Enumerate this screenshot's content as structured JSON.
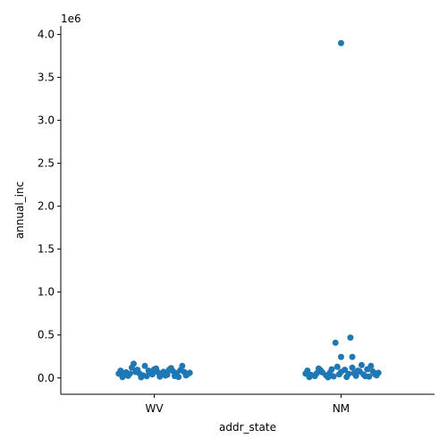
{
  "chart_data": {
    "type": "scatter",
    "xlabel": "addr_state",
    "ylabel": "annual_inc",
    "offset_label": "1e6",
    "categories": [
      "WV",
      "NM"
    ],
    "ylim": [
      -190000,
      4100000
    ],
    "yticks": [
      0,
      500000,
      1000000,
      1500000,
      2000000,
      2500000,
      3000000,
      3500000,
      4000000
    ],
    "ytick_labels": [
      "0.0",
      "0.5",
      "1.0",
      "1.5",
      "2.0",
      "2.5",
      "3.0",
      "3.5",
      "4.0"
    ],
    "grid": false,
    "legend": "none",
    "marker_color": "#1f77b4",
    "series": [
      {
        "category": "WV",
        "points": [
          [
            -0.18,
            85000
          ],
          [
            -0.12,
            120000
          ],
          [
            -0.02,
            60000
          ],
          [
            0.08,
            95000
          ],
          [
            0.16,
            70000
          ],
          [
            -0.16,
            40000
          ],
          [
            -0.06,
            30000
          ],
          [
            0.04,
            50000
          ],
          [
            0.12,
            35000
          ],
          [
            -0.1,
            70000
          ],
          [
            0.0,
            100000
          ],
          [
            0.1,
            80000
          ],
          [
            -0.14,
            25000
          ],
          [
            -0.04,
            20000
          ],
          [
            0.06,
            28000
          ],
          [
            0.18,
            45000
          ],
          [
            -0.08,
            55000
          ],
          [
            0.02,
            65000
          ],
          [
            0.14,
            90000
          ],
          [
            -0.11,
            165000
          ],
          [
            -0.05,
            140000
          ],
          [
            0.09,
            115000
          ],
          [
            0.15,
            140000
          ],
          [
            -0.17,
            10000
          ],
          [
            -0.07,
            8000
          ],
          [
            0.03,
            15000
          ],
          [
            0.13,
            12000
          ],
          [
            0.19,
            60000
          ],
          [
            -0.01,
            42000
          ],
          [
            0.07,
            38000
          ],
          [
            -0.13,
            50000
          ],
          [
            0.11,
            22000
          ],
          [
            -0.03,
            85000
          ],
          [
            0.05,
            72000
          ],
          [
            0.17,
            30000
          ],
          [
            -0.09,
            95000
          ],
          [
            0.01,
            110000
          ],
          [
            -0.15,
            65000
          ],
          [
            0.12,
            55000
          ],
          [
            -0.19,
            50000
          ]
        ]
      },
      {
        "category": "NM",
        "points": [
          [
            0.0,
            3900000
          ],
          [
            0.05,
            470000
          ],
          [
            -0.03,
            410000
          ],
          [
            0.0,
            245000
          ],
          [
            0.06,
            245000
          ],
          [
            -0.18,
            85000
          ],
          [
            -0.12,
            110000
          ],
          [
            -0.06,
            60000
          ],
          [
            0.02,
            95000
          ],
          [
            0.1,
            75000
          ],
          [
            0.16,
            140000
          ],
          [
            0.2,
            60000
          ],
          [
            -0.16,
            35000
          ],
          [
            -0.08,
            30000
          ],
          [
            0.04,
            48000
          ],
          [
            0.12,
            40000
          ],
          [
            -0.14,
            22000
          ],
          [
            -0.04,
            18000
          ],
          [
            0.08,
            25000
          ],
          [
            0.18,
            45000
          ],
          [
            -0.1,
            65000
          ],
          [
            0.0,
            70000
          ],
          [
            0.14,
            100000
          ],
          [
            -0.02,
            130000
          ],
          [
            0.06,
            120000
          ],
          [
            0.11,
            150000
          ],
          [
            -0.17,
            10000
          ],
          [
            -0.07,
            8000
          ],
          [
            0.03,
            12000
          ],
          [
            0.15,
            15000
          ],
          [
            -0.13,
            55000
          ],
          [
            0.07,
            55000
          ],
          [
            -0.01,
            42000
          ],
          [
            0.19,
            30000
          ],
          [
            -0.11,
            90000
          ],
          [
            0.09,
            85000
          ],
          [
            -0.05,
            100000
          ],
          [
            0.17,
            75000
          ],
          [
            -0.19,
            50000
          ],
          [
            0.13,
            20000
          ]
        ]
      }
    ]
  }
}
